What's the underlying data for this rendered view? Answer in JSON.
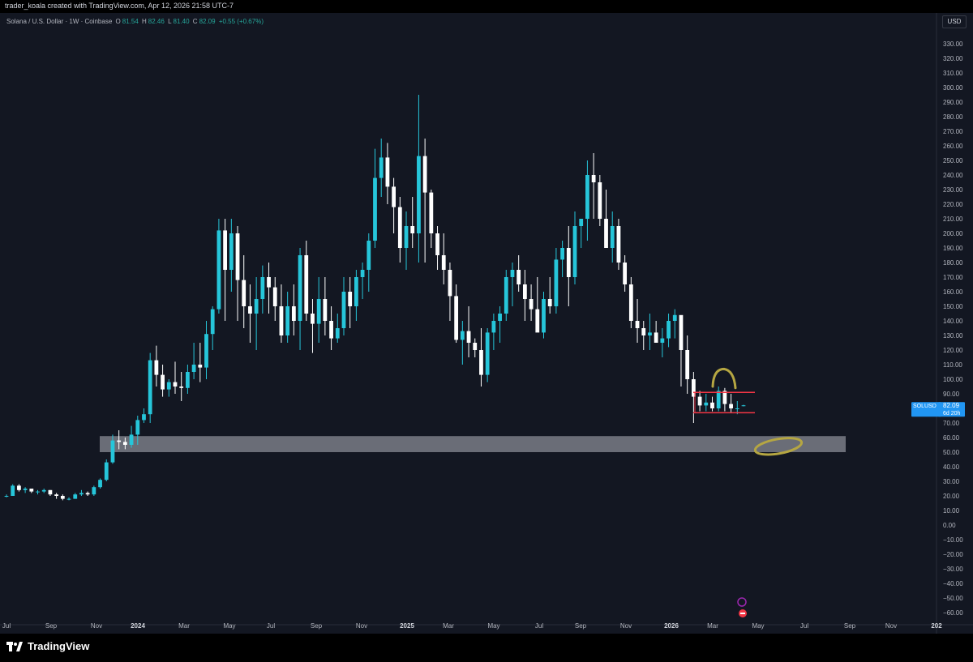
{
  "header": {
    "credit": "trader_koala created with TradingView.com, Apr 12, 2026 21:58 UTC-7"
  },
  "legend": {
    "symbol": "Solana / U.S. Dollar · 1W · Coinbase",
    "o_label": "O",
    "o_value": "81.54",
    "h_label": "H",
    "h_value": "82.46",
    "l_label": "L",
    "l_value": "81.40",
    "c_label": "C",
    "c_value": "82.09",
    "change": "+0.55 (+0.67%)"
  },
  "currency_button": "USD",
  "price_tag": {
    "symbol": "SOLUSD",
    "price": "82.09",
    "countdown": "6d 20h"
  },
  "brand": {
    "name": "TradingView"
  },
  "colors": {
    "background": "#131722",
    "up": "#26c6da",
    "down": "#ffffff",
    "price_tag": "#2196f3",
    "range_lines": "#f23645",
    "highlight_circle": "#b5a642",
    "support_zone": "#b2b5be"
  },
  "chart_data": {
    "type": "candlestick",
    "title": "Solana / U.S. Dollar · 1W · Coinbase",
    "ylabel": "USD",
    "ylim": [
      -60,
      340
    ],
    "y_ticks": [
      "330.00",
      "320.00",
      "310.00",
      "300.00",
      "290.00",
      "280.00",
      "270.00",
      "260.00",
      "250.00",
      "240.00",
      "230.00",
      "220.00",
      "210.00",
      "200.00",
      "190.00",
      "180.00",
      "170.00",
      "160.00",
      "150.00",
      "140.00",
      "130.00",
      "120.00",
      "110.00",
      "100.00",
      "90.00",
      "80.00",
      "70.00",
      "60.00",
      "50.00",
      "40.00",
      "30.00",
      "20.00",
      "10.00",
      "0.00",
      "−10.00",
      "−20.00",
      "−30.00",
      "−40.00",
      "−50.00",
      "−60.00"
    ],
    "x_ticks": [
      {
        "label": "Jul",
        "bold": false
      },
      {
        "label": "Sep",
        "bold": false
      },
      {
        "label": "Nov",
        "bold": false
      },
      {
        "label": "2024",
        "bold": true
      },
      {
        "label": "Mar",
        "bold": false
      },
      {
        "label": "May",
        "bold": false
      },
      {
        "label": "Jul",
        "bold": false
      },
      {
        "label": "Sep",
        "bold": false
      },
      {
        "label": "Nov",
        "bold": false
      },
      {
        "label": "2025",
        "bold": true
      },
      {
        "label": "Mar",
        "bold": false
      },
      {
        "label": "May",
        "bold": false
      },
      {
        "label": "Jul",
        "bold": false
      },
      {
        "label": "Sep",
        "bold": false
      },
      {
        "label": "Nov",
        "bold": false
      },
      {
        "label": "2026",
        "bold": true
      },
      {
        "label": "Mar",
        "bold": false
      },
      {
        "label": "May",
        "bold": false
      },
      {
        "label": "Jul",
        "bold": false
      },
      {
        "label": "Sep",
        "bold": false
      },
      {
        "label": "Nov",
        "bold": false
      },
      {
        "label": "202",
        "bold": true
      }
    ],
    "last_close": 82.09,
    "candles_ohlc": [
      [
        20,
        21,
        19,
        20
      ],
      [
        20,
        28,
        20,
        27
      ],
      [
        27,
        28,
        23,
        24
      ],
      [
        24,
        26,
        22,
        25
      ],
      [
        25,
        25,
        22,
        23
      ],
      [
        23,
        24,
        21,
        23
      ],
      [
        23,
        25,
        22,
        24
      ],
      [
        24,
        24,
        20,
        21
      ],
      [
        21,
        22,
        18,
        20
      ],
      [
        20,
        21,
        17,
        18
      ],
      [
        18,
        19,
        17,
        18
      ],
      [
        18,
        22,
        18,
        21
      ],
      [
        21,
        24,
        20,
        22
      ],
      [
        22,
        23,
        20,
        21
      ],
      [
        21,
        27,
        20,
        26
      ],
      [
        26,
        32,
        25,
        31
      ],
      [
        31,
        45,
        30,
        43
      ],
      [
        43,
        62,
        42,
        58
      ],
      [
        58,
        65,
        52,
        57
      ],
      [
        57,
        60,
        52,
        55
      ],
      [
        55,
        68,
        53,
        62
      ],
      [
        62,
        75,
        55,
        72
      ],
      [
        72,
        80,
        70,
        76
      ],
      [
        76,
        118,
        70,
        113
      ],
      [
        113,
        123,
        95,
        103
      ],
      [
        103,
        110,
        88,
        93
      ],
      [
        93,
        100,
        88,
        98
      ],
      [
        98,
        112,
        90,
        95
      ],
      [
        95,
        105,
        85,
        94
      ],
      [
        94,
        110,
        90,
        105
      ],
      [
        105,
        125,
        100,
        110
      ],
      [
        110,
        125,
        98,
        108
      ],
      [
        108,
        140,
        100,
        131
      ],
      [
        131,
        150,
        120,
        148
      ],
      [
        148,
        210,
        145,
        202
      ],
      [
        202,
        210,
        140,
        175
      ],
      [
        175,
        210,
        160,
        200
      ],
      [
        200,
        205,
        140,
        168
      ],
      [
        168,
        185,
        135,
        150
      ],
      [
        150,
        165,
        125,
        145
      ],
      [
        145,
        170,
        120,
        155
      ],
      [
        155,
        178,
        145,
        170
      ],
      [
        170,
        180,
        145,
        163
      ],
      [
        163,
        170,
        140,
        150
      ],
      [
        150,
        165,
        125,
        130
      ],
      [
        130,
        160,
        125,
        150
      ],
      [
        150,
        165,
        130,
        140
      ],
      [
        140,
        190,
        120,
        185
      ],
      [
        185,
        195,
        140,
        145
      ],
      [
        145,
        155,
        118,
        138
      ],
      [
        138,
        170,
        125,
        155
      ],
      [
        155,
        170,
        130,
        140
      ],
      [
        140,
        150,
        120,
        128
      ],
      [
        128,
        145,
        125,
        135
      ],
      [
        135,
        170,
        130,
        160
      ],
      [
        160,
        170,
        135,
        150
      ],
      [
        150,
        175,
        140,
        170
      ],
      [
        170,
        180,
        155,
        175
      ],
      [
        175,
        200,
        160,
        195
      ],
      [
        195,
        258,
        190,
        238
      ],
      [
        238,
        265,
        225,
        252
      ],
      [
        252,
        262,
        220,
        232
      ],
      [
        232,
        238,
        200,
        218
      ],
      [
        218,
        225,
        180,
        190
      ],
      [
        190,
        215,
        175,
        205
      ],
      [
        205,
        225,
        190,
        200
      ],
      [
        200,
        295,
        180,
        253
      ],
      [
        253,
        265,
        180,
        228
      ],
      [
        228,
        230,
        190,
        200
      ],
      [
        200,
        205,
        175,
        185
      ],
      [
        185,
        200,
        165,
        175
      ],
      [
        175,
        180,
        140,
        157
      ],
      [
        157,
        165,
        125,
        127
      ],
      [
        127,
        140,
        110,
        133
      ],
      [
        133,
        150,
        115,
        125
      ],
      [
        125,
        128,
        115,
        120
      ],
      [
        120,
        135,
        95,
        103
      ],
      [
        103,
        135,
        98,
        132
      ],
      [
        132,
        145,
        120,
        140
      ],
      [
        140,
        150,
        125,
        145
      ],
      [
        145,
        175,
        140,
        170
      ],
      [
        170,
        180,
        150,
        175
      ],
      [
        175,
        185,
        160,
        165
      ],
      [
        165,
        175,
        140,
        155
      ],
      [
        155,
        165,
        140,
        148
      ],
      [
        148,
        170,
        140,
        132
      ],
      [
        132,
        160,
        128,
        155
      ],
      [
        155,
        170,
        145,
        150
      ],
      [
        150,
        190,
        145,
        182
      ],
      [
        182,
        195,
        170,
        190
      ],
      [
        190,
        205,
        150,
        170
      ],
      [
        170,
        215,
        165,
        205
      ],
      [
        205,
        210,
        190,
        210
      ],
      [
        210,
        250,
        195,
        240
      ],
      [
        240,
        255,
        210,
        235
      ],
      [
        235,
        240,
        205,
        210
      ],
      [
        210,
        230,
        190,
        190
      ],
      [
        190,
        215,
        180,
        205
      ],
      [
        205,
        210,
        175,
        180
      ],
      [
        180,
        185,
        160,
        165
      ],
      [
        165,
        170,
        135,
        140
      ],
      [
        140,
        155,
        125,
        135
      ],
      [
        135,
        140,
        120,
        130
      ],
      [
        130,
        145,
        120,
        132
      ],
      [
        132,
        140,
        125,
        125
      ],
      [
        125,
        135,
        115,
        128
      ],
      [
        128,
        145,
        122,
        140
      ],
      [
        140,
        148,
        128,
        144
      ],
      [
        144,
        140,
        95,
        120
      ],
      [
        120,
        130,
        90,
        100
      ],
      [
        100,
        105,
        70,
        88
      ],
      [
        88,
        92,
        78,
        82
      ],
      [
        82,
        90,
        78,
        84
      ],
      [
        84,
        88,
        78,
        80
      ],
      [
        80,
        95,
        78,
        92
      ],
      [
        92,
        94,
        78,
        83
      ],
      [
        83,
        90,
        77,
        80
      ],
      [
        80,
        85,
        76,
        80
      ],
      [
        81.54,
        82.46,
        81.4,
        82.09
      ]
    ],
    "annotations": {
      "support_zone": [
        50,
        61
      ],
      "range_top": 91,
      "range_bottom": 77
    }
  }
}
